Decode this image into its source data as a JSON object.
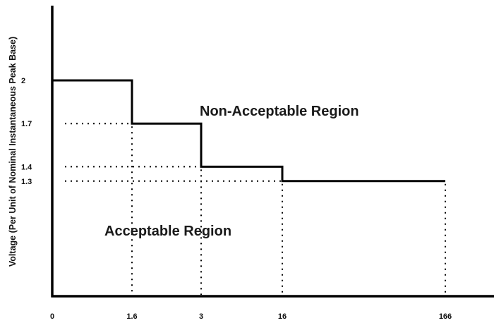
{
  "chart_data": {
    "type": "line",
    "title": "",
    "xlabel": "",
    "ylabel": "Voltage (Per Unit of Nominal Instantaneous Peak Base)",
    "x_tick_labels": [
      "0",
      "1.6",
      "3",
      "16",
      "166"
    ],
    "y_tick_labels": [
      "2",
      "1.7",
      "1.4",
      "1.3"
    ],
    "series": [
      {
        "step": "post",
        "points": [
          {
            "x": "0",
            "y": 2
          },
          {
            "x": "1.6",
            "y": 1.7
          },
          {
            "x": "3",
            "y": 1.4
          },
          {
            "x": "16",
            "y": 1.3
          },
          {
            "x": "166",
            "y": 1.3
          }
        ]
      }
    ],
    "annotations": {
      "upper": "Non-Acceptable Region",
      "lower": "Acceptable Region"
    },
    "grid": false,
    "colors": {
      "line": "#000000",
      "guides": "#000000"
    }
  }
}
